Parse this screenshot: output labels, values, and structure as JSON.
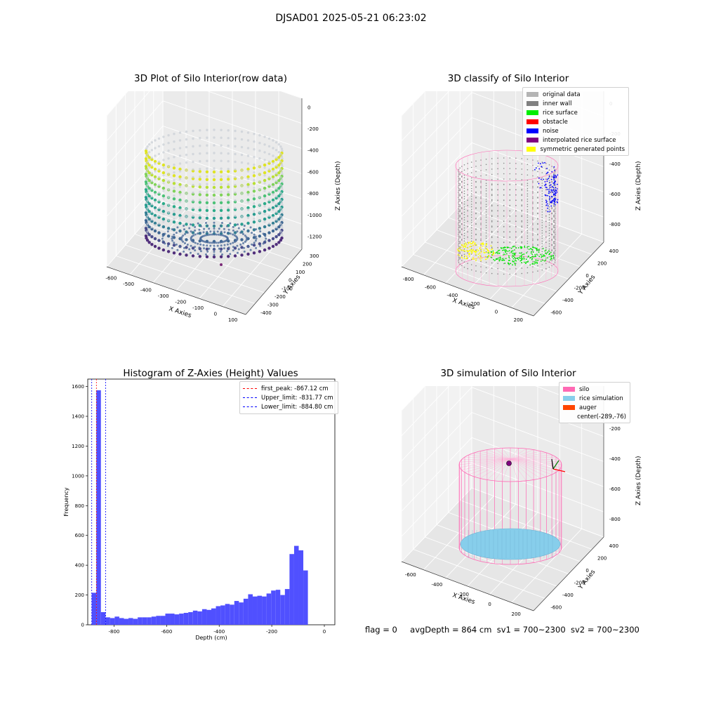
{
  "suptitle": "DJSAD01 2025-05-21 06:23:02",
  "panels": {
    "raw": {
      "title": "3D Plot of Silo Interior(row data)",
      "xlabel": "X Axies",
      "ylabel": "Y Axies",
      "zlabel": "Z Axies (Depth)",
      "xticks": [
        "-600",
        "-500",
        "-400",
        "-300",
        "-200",
        "-100",
        "0",
        "100"
      ],
      "yticks": [
        "300",
        "200",
        "100",
        "0",
        "-100",
        "-200",
        "-300",
        "-400"
      ],
      "zticks": [
        "0",
        "-200",
        "-400",
        "-600",
        "-800",
        "-1000",
        "-1200"
      ]
    },
    "classify": {
      "title": "3D classify of Silo Interior",
      "xlabel": "X Axies",
      "ylabel": "Y Axies",
      "zlabel": "Z Axies (Depth)",
      "xticks": [
        "-800",
        "-600",
        "-400",
        "-200",
        "0",
        "200"
      ],
      "yticks": [
        "400",
        "200",
        "0",
        "-200",
        "-400",
        "-600"
      ],
      "zticks": [
        "0",
        "-200",
        "-400",
        "-600",
        "-800"
      ],
      "legend": [
        {
          "label": "original data",
          "color": "#b4b4b4"
        },
        {
          "label": "inner wall",
          "color": "#808080"
        },
        {
          "label": "rice surface",
          "color": "#00ee00"
        },
        {
          "label": "obstacle",
          "color": "#ff0000"
        },
        {
          "label": "noise",
          "color": "#0000ff"
        },
        {
          "label": "interpolated rice surface",
          "color": "#800080"
        },
        {
          "label": "symmetric generated points",
          "color": "#ffff00"
        }
      ]
    },
    "simulation": {
      "title": "3D simulation of Silo Interior",
      "xlabel": "X Axies",
      "ylabel": "Y Axies",
      "zlabel": "Z Axies (Depth)",
      "xticks": [
        "-600",
        "-400",
        "-200",
        "0",
        "200"
      ],
      "yticks": [
        "400",
        "200",
        "0",
        "-200",
        "-400",
        "-600"
      ],
      "zticks": [
        "0",
        "-200",
        "-400",
        "-600",
        "-800"
      ],
      "legend": [
        {
          "label": "silo",
          "color": "#ff69b4"
        },
        {
          "label": "rice simulation",
          "color": "#87ceeb"
        },
        {
          "label": "auger",
          "color": "#ff4500"
        },
        {
          "label": "center(-289,-76)",
          "color": "transparent"
        }
      ]
    }
  },
  "status": {
    "flag": "flag = 0",
    "avg": "avgDepth = 864 cm",
    "sv1": "sv1 = 700~2300",
    "sv2": "sv2 = 700~2300"
  },
  "chart_data": [
    {
      "type": "scatter",
      "title": "3D Plot of Silo Interior(row data)",
      "xlabel": "X Axies",
      "ylabel": "Y Axies",
      "zlabel": "Z Axies (Depth)",
      "xlim": [
        -650,
        100
      ],
      "ylim": [
        -450,
        300
      ],
      "zlim": [
        -1300,
        0
      ]
    },
    {
      "type": "scatter",
      "title": "3D classify of Silo Interior",
      "xlabel": "X Axies",
      "ylabel": "Y Axies",
      "zlabel": "Z Axies (Depth)",
      "xlim": [
        -800,
        200
      ],
      "ylim": [
        -600,
        400
      ],
      "zlim": [
        -900,
        0
      ],
      "legend_position": "upper right",
      "series": [
        {
          "name": "original data"
        },
        {
          "name": "inner wall"
        },
        {
          "name": "rice surface"
        },
        {
          "name": "obstacle"
        },
        {
          "name": "noise"
        },
        {
          "name": "interpolated rice surface"
        },
        {
          "name": "symmetric generated points"
        }
      ]
    },
    {
      "type": "bar",
      "title": "Histogram of Z-Axies (Height) Values",
      "xlabel": "Depth (cm)",
      "ylabel": "Frequency",
      "xlim": [
        -900,
        40
      ],
      "ylim": [
        0,
        1650
      ],
      "xticks": [
        -800,
        -600,
        -400,
        -200,
        0
      ],
      "yticks": [
        0,
        200,
        400,
        600,
        800,
        1000,
        1200,
        1400,
        1600
      ],
      "bin_start": -885,
      "bin_width": 17.5,
      "values": [
        215,
        1575,
        85,
        50,
        45,
        55,
        45,
        40,
        45,
        40,
        50,
        50,
        50,
        55,
        60,
        60,
        75,
        75,
        70,
        75,
        80,
        85,
        95,
        90,
        105,
        100,
        110,
        125,
        130,
        140,
        135,
        160,
        150,
        175,
        205,
        190,
        195,
        190,
        210,
        230,
        235,
        200,
        240,
        475,
        530,
        500,
        365
      ],
      "vlines": [
        {
          "label": "first_peak: -867.12 cm",
          "x": -867.12,
          "color": "#ff0000"
        },
        {
          "label": "Upper_limit: -831.77 cm",
          "x": -831.77,
          "color": "#0000ff"
        },
        {
          "label": "Lower_limit: -884.80 cm",
          "x": -884.8,
          "color": "#0000ff"
        }
      ],
      "legend_position": "upper right",
      "bar_color": "#5050ff"
    },
    {
      "type": "scatter",
      "title": "3D simulation of Silo Interior",
      "xlabel": "X Axies",
      "ylabel": "Y Axies",
      "zlabel": "Z Axies (Depth)",
      "xlim": [
        -750,
        250
      ],
      "ylim": [
        -600,
        400
      ],
      "zlim": [
        -900,
        0
      ],
      "legend_position": "upper right",
      "series": [
        {
          "name": "silo"
        },
        {
          "name": "rice simulation"
        },
        {
          "name": "auger"
        }
      ],
      "annotations": [
        "center(-289,-76)"
      ]
    }
  ]
}
